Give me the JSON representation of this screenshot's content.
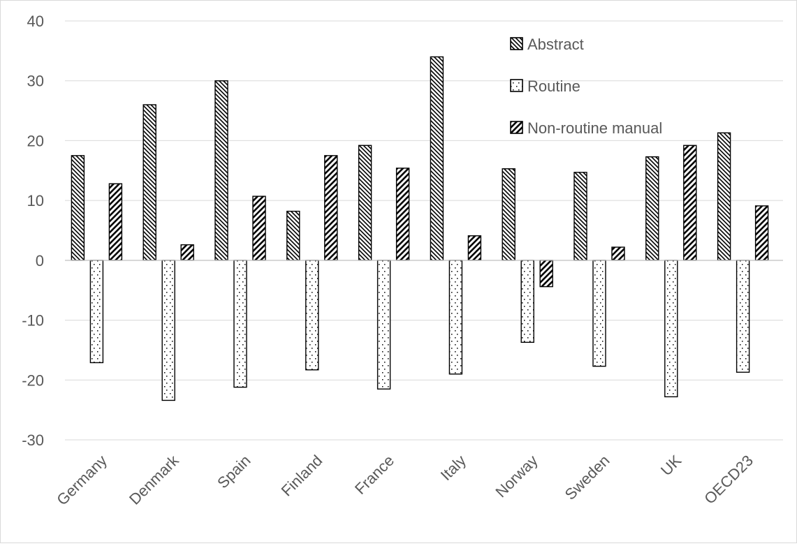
{
  "chart_data": {
    "type": "bar",
    "title": "",
    "xlabel": "",
    "ylabel": "",
    "categories": [
      "Germany",
      "Denmark",
      "Spain",
      "Finland",
      "France",
      "Italy",
      "Norway",
      "Sweden",
      "UK",
      "OECD23"
    ],
    "series": [
      {
        "name": "Abstract",
        "pattern": "backslash-hatch",
        "values": [
          17.5,
          26.0,
          30.0,
          8.2,
          19.2,
          34.0,
          15.3,
          14.7,
          17.3,
          21.3
        ]
      },
      {
        "name": "Routine",
        "pattern": "dots",
        "values": [
          -17.1,
          -23.4,
          -21.2,
          -18.3,
          -21.5,
          -19.0,
          -13.7,
          -17.7,
          -22.8,
          -18.7
        ]
      },
      {
        "name": "Non-routine manual",
        "pattern": "slash-hatch",
        "values": [
          12.8,
          2.6,
          10.7,
          17.5,
          15.4,
          4.1,
          -4.4,
          2.2,
          19.2,
          9.1
        ]
      }
    ],
    "ylim": [
      -30,
      40
    ],
    "yticks": [
      40,
      30,
      20,
      10,
      0,
      -10,
      -20,
      -30
    ],
    "grid": true,
    "legend_position": "top-right",
    "colors": {
      "stroke": "#000000",
      "grid": "#d9d9d9",
      "text": "#595959"
    }
  }
}
